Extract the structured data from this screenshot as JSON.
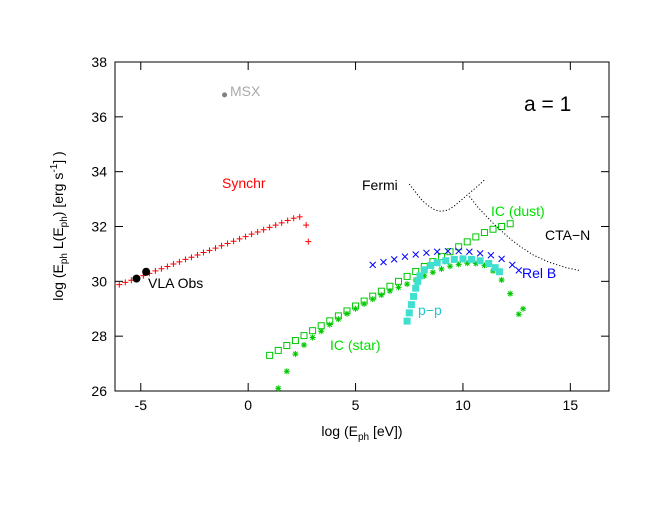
{
  "chart_data": {
    "type": "scatter",
    "title": "",
    "annotation": "a = 1",
    "xlabel": "log (E_ph [eV])",
    "ylabel": "log (E_ph L(E_ph) [erg s^-1] )",
    "xlim": [
      -6.2,
      16.8
    ],
    "ylim": [
      26,
      38
    ],
    "xticks": [
      -5,
      0,
      5,
      10,
      15
    ],
    "yticks": [
      26,
      28,
      30,
      32,
      34,
      36,
      38
    ],
    "grid": false,
    "colors": {
      "synchr": "#ff0000",
      "ic_dust": "#00c800",
      "ic_star": "#00c800",
      "rel_b": "#0000ff",
      "pp": "#40e0d0",
      "vla": "#000000",
      "msx": "#808080",
      "fermi": "#000000",
      "cta": "#000000",
      "ic_dust_label": "#00e000",
      "ic_star_label": "#00e000",
      "pp_label": "#20c8d0"
    },
    "series": [
      {
        "name": "Synchr",
        "marker": "plus",
        "x": [
          -6.0,
          -5.72,
          -5.44,
          -5.16,
          -4.88,
          -4.6,
          -4.32,
          -4.04,
          -3.76,
          -3.48,
          -3.2,
          -2.92,
          -2.64,
          -2.36,
          -2.08,
          -1.8,
          -1.52,
          -1.24,
          -0.96,
          -0.68,
          -0.4,
          -0.12,
          0.16,
          0.44,
          0.72,
          1.0,
          1.28,
          1.56,
          1.84,
          2.12,
          2.4,
          2.7,
          2.8
        ],
        "y": [
          29.88,
          29.96,
          30.04,
          30.13,
          30.21,
          30.29,
          30.38,
          30.46,
          30.54,
          30.63,
          30.71,
          30.8,
          30.88,
          30.96,
          31.05,
          31.13,
          31.21,
          31.3,
          31.38,
          31.46,
          31.55,
          31.63,
          31.72,
          31.8,
          31.88,
          31.97,
          32.05,
          32.13,
          32.22,
          32.3,
          32.35,
          32.05,
          31.45
        ]
      },
      {
        "name": "IC (dust)",
        "marker": "square",
        "x": [
          1.0,
          1.4,
          1.8,
          2.2,
          2.6,
          3.0,
          3.4,
          3.8,
          4.2,
          4.6,
          5.0,
          5.4,
          5.8,
          6.2,
          6.6,
          7.0,
          7.4,
          7.8,
          8.2,
          8.6,
          9.0,
          9.4,
          9.8,
          10.2,
          10.6,
          11.0,
          11.4,
          11.8,
          12.2
        ],
        "y": [
          27.3,
          27.48,
          27.66,
          27.84,
          28.02,
          28.2,
          28.38,
          28.56,
          28.74,
          28.92,
          29.1,
          29.28,
          29.46,
          29.64,
          29.82,
          30.0,
          30.18,
          30.36,
          30.54,
          30.72,
          30.9,
          31.08,
          31.26,
          31.44,
          31.62,
          31.78,
          31.9,
          32.0,
          32.1
        ]
      },
      {
        "name": "IC (star)",
        "marker": "asterisk",
        "x": [
          1.4,
          1.8,
          2.2,
          2.6,
          3.0,
          3.4,
          3.8,
          4.2,
          4.6,
          5.0,
          5.4,
          5.8,
          6.2,
          6.6,
          7.0,
          7.4,
          7.8,
          8.2,
          8.6,
          9.0,
          9.4,
          9.8,
          10.2,
          10.6,
          11.0,
          11.4,
          11.8,
          12.2,
          12.6,
          12.8
        ],
        "y": [
          26.1,
          26.72,
          27.35,
          27.68,
          27.95,
          28.18,
          28.42,
          28.62,
          28.82,
          29.0,
          29.18,
          29.35,
          29.5,
          29.65,
          29.78,
          29.9,
          30.05,
          30.2,
          30.33,
          30.45,
          30.55,
          30.62,
          30.66,
          30.65,
          30.58,
          30.38,
          30.05,
          29.55,
          28.8,
          29.0
        ]
      },
      {
        "name": "Rel B",
        "marker": "cross",
        "x": [
          5.8,
          6.3,
          6.8,
          7.3,
          7.8,
          8.3,
          8.8,
          9.3,
          9.8,
          10.3,
          10.8,
          11.3,
          11.8,
          12.3,
          12.6
        ],
        "y": [
          30.6,
          30.7,
          30.8,
          30.9,
          30.98,
          31.04,
          31.08,
          31.1,
          31.1,
          31.08,
          31.02,
          30.95,
          30.82,
          30.6,
          30.4
        ]
      },
      {
        "name": "p-p",
        "marker": "filled-square",
        "x": [
          7.4,
          7.5,
          7.6,
          7.7,
          7.8,
          7.9,
          8.0,
          8.2,
          8.5,
          8.8,
          9.2,
          9.6,
          10.0,
          10.4,
          10.8,
          11.2,
          11.5,
          11.7
        ],
        "y": [
          28.55,
          28.85,
          29.15,
          29.45,
          29.75,
          30.0,
          30.2,
          30.42,
          30.58,
          30.68,
          30.75,
          30.8,
          30.82,
          30.8,
          30.75,
          30.65,
          30.5,
          30.35
        ]
      },
      {
        "name": "VLA Obs",
        "marker": "filled-circle",
        "x": [
          -5.2,
          -4.75
        ],
        "y": [
          30.1,
          30.35
        ]
      },
      {
        "name": "MSX",
        "marker": "small-circle",
        "x": [
          -1.1
        ],
        "y": [
          36.8
        ]
      },
      {
        "name": "Fermi",
        "marker": "dotted-line",
        "x": [
          7.5,
          7.8,
          8.1,
          8.4,
          8.7,
          9.0,
          9.3,
          9.6,
          9.9,
          10.2,
          10.5,
          10.8,
          11.0
        ],
        "y": [
          33.55,
          33.25,
          32.95,
          32.75,
          32.6,
          32.55,
          32.6,
          32.75,
          32.95,
          33.15,
          33.35,
          33.55,
          33.7
        ]
      },
      {
        "name": "CTA-N",
        "marker": "dotted-line",
        "x": [
          10.3,
          10.7,
          11.0,
          11.3,
          11.7,
          12.2,
          12.7,
          13.3,
          14.0,
          14.8,
          15.4
        ],
        "y": [
          33.1,
          32.7,
          32.45,
          32.2,
          31.9,
          31.55,
          31.25,
          30.95,
          30.7,
          30.5,
          30.4
        ]
      }
    ],
    "labels": {
      "synchr": "Synchr",
      "ic_dust": "IC (dust)",
      "ic_star": "IC (star)",
      "rel_b": "Rel B",
      "pp": "p−p",
      "vla": "VLA Obs",
      "msx": "MSX",
      "fermi": "Fermi",
      "cta": "CTA−N"
    }
  }
}
